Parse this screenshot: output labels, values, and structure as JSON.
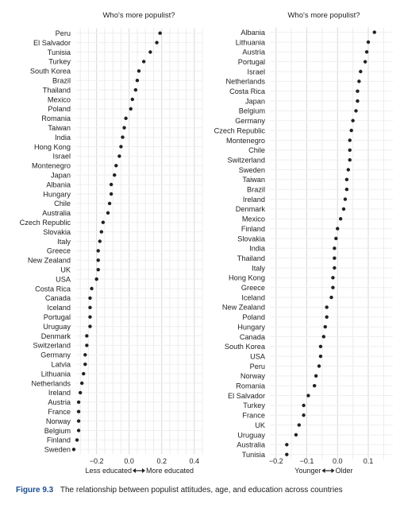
{
  "caption": {
    "label": "Figure 9.3",
    "text": "The relationship between populist attitudes, age, and education across countries"
  },
  "chart_data": [
    {
      "type": "scatter",
      "title": "Who's more populist?",
      "xlabel_left": "Less educated",
      "xlabel_right": "More educated",
      "xlim": [
        -0.33,
        0.45
      ],
      "xticks": [
        -0.2,
        0.0,
        0.2,
        0.4
      ],
      "xtick_labels": [
        "−0.2",
        "0.0",
        "0.2",
        "0.4"
      ],
      "grid": true,
      "categories": [
        "Peru",
        "El Salvador",
        "Tunisia",
        "Turkey",
        "South Korea",
        "Brazil",
        "Thailand",
        "Mexico",
        "Poland",
        "Romania",
        "Taiwan",
        "India",
        "Hong Kong",
        "Israel",
        "Montenegro",
        "Japan",
        "Albania",
        "Hungary",
        "Chile",
        "Australia",
        "Czech Republic",
        "Slovakia",
        "Italy",
        "Greece",
        "New Zealand",
        "UK",
        "USA",
        "Costa Rica",
        "Canada",
        "Iceland",
        "Portugal",
        "Uruguay",
        "Denmark",
        "Switzerland",
        "Germany",
        "Latvia",
        "Lithuania",
        "Netherlands",
        "Ireland",
        "Austria",
        "France",
        "Norway",
        "Belgium",
        "Finland",
        "Sweden"
      ],
      "values": [
        0.19,
        0.17,
        0.13,
        0.09,
        0.06,
        0.05,
        0.04,
        0.02,
        0.01,
        -0.02,
        -0.03,
        -0.04,
        -0.05,
        -0.06,
        -0.08,
        -0.09,
        -0.11,
        -0.11,
        -0.12,
        -0.13,
        -0.16,
        -0.17,
        -0.18,
        -0.19,
        -0.19,
        -0.19,
        -0.2,
        -0.23,
        -0.24,
        -0.24,
        -0.24,
        -0.24,
        -0.26,
        -0.26,
        -0.27,
        -0.27,
        -0.28,
        -0.29,
        -0.3,
        -0.31,
        -0.31,
        -0.31,
        -0.31,
        -0.32,
        -0.34
      ]
    },
    {
      "type": "scatter",
      "title": "Who's more populist?",
      "xlabel_left": "Younger",
      "xlabel_right": "Older",
      "xlim": [
        -0.22,
        0.18
      ],
      "xticks": [
        -0.2,
        -0.1,
        0.0,
        0.1
      ],
      "xtick_labels": [
        "−0.2",
        "−0.1",
        "0.0",
        "0.1"
      ],
      "grid": true,
      "categories": [
        "Albania",
        "Lithuania",
        "Austria",
        "Portugal",
        "Israel",
        "Netherlands",
        "Costa Rica",
        "Japan",
        "Belgium",
        "Germany",
        "Czech Republic",
        "Montenegro",
        "Chile",
        "Switzerland",
        "Sweden",
        "Taiwan",
        "Brazil",
        "Ireland",
        "Denmark",
        "Mexico",
        "Finland",
        "Slovakia",
        "India",
        "Thailand",
        "Italy",
        "Hong Kong",
        "Greece",
        "Iceland",
        "New Zealand",
        "Poland",
        "Hungary",
        "Canada",
        "South Korea",
        "USA",
        "Peru",
        "Norway",
        "Romania",
        "El Salvador",
        "Turkey",
        "France",
        "UK",
        "Uruguay",
        "Australia",
        "Tunisia"
      ],
      "values": [
        0.12,
        0.1,
        0.095,
        0.09,
        0.075,
        0.07,
        0.065,
        0.065,
        0.06,
        0.05,
        0.045,
        0.04,
        0.04,
        0.04,
        0.035,
        0.03,
        0.03,
        0.025,
        0.02,
        0.01,
        0.0,
        -0.005,
        -0.01,
        -0.01,
        -0.01,
        -0.015,
        -0.015,
        -0.02,
        -0.035,
        -0.035,
        -0.04,
        -0.045,
        -0.055,
        -0.055,
        -0.06,
        -0.07,
        -0.075,
        -0.095,
        -0.11,
        -0.11,
        -0.125,
        -0.135,
        -0.165,
        -0.165
      ]
    }
  ]
}
